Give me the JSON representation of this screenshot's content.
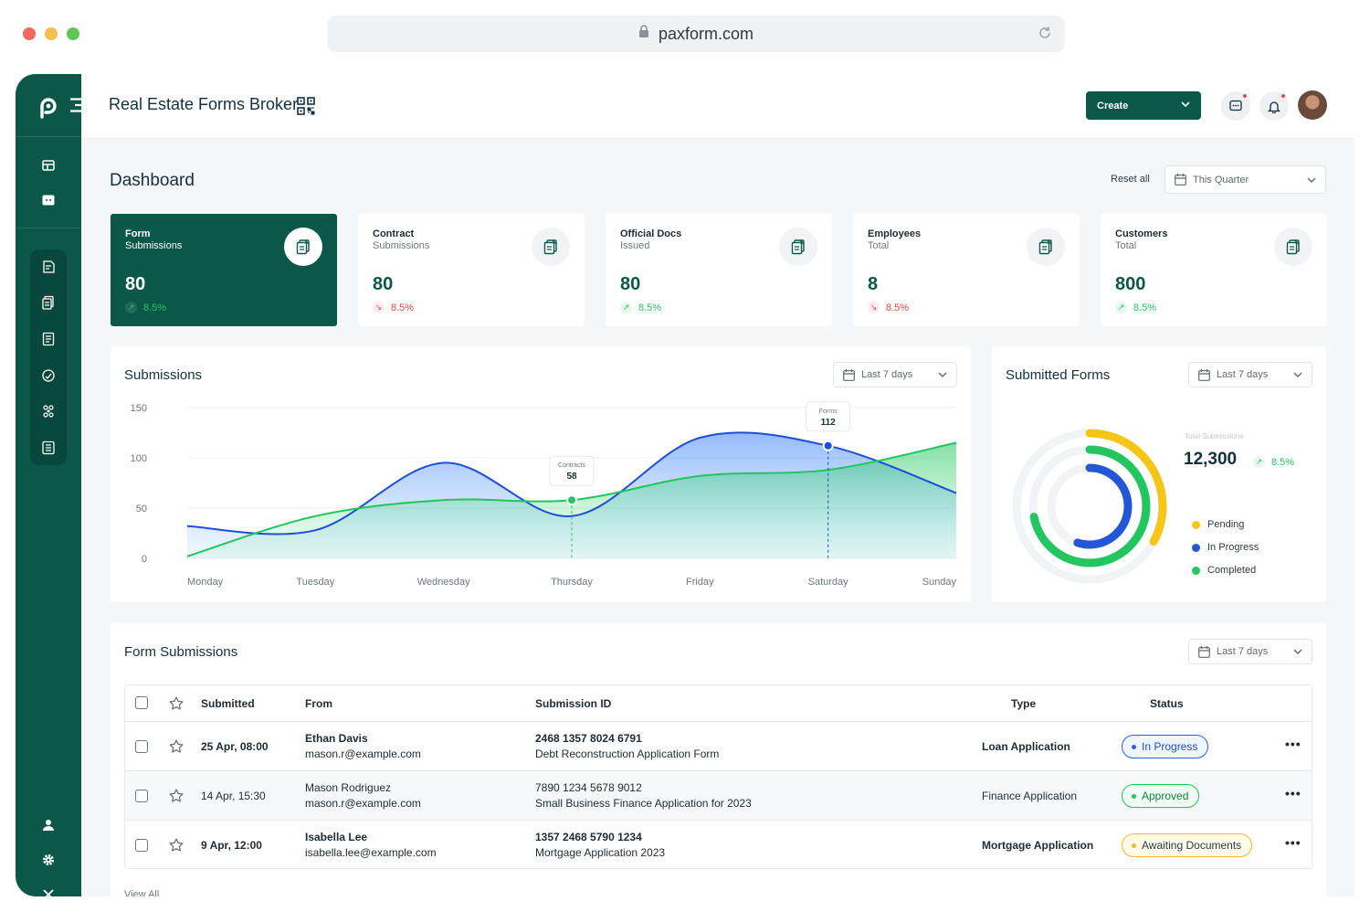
{
  "browser": {
    "url": "paxform.com"
  },
  "app": {
    "title": "Real Estate Forms Broker",
    "create_label": "Create"
  },
  "dashboard": {
    "title": "Dashboard",
    "reset_label": "Reset all",
    "period": "This Quarter"
  },
  "stats": [
    {
      "title": "Form",
      "subtitle": "Submissions",
      "value": "80",
      "change": "8.5%",
      "direction": "up"
    },
    {
      "title": "Contract",
      "subtitle": "Submissions",
      "value": "80",
      "change": "8.5%",
      "direction": "down"
    },
    {
      "title": "Official Docs",
      "subtitle": "Issued",
      "value": "80",
      "change": "8.5%",
      "direction": "up"
    },
    {
      "title": "Employees",
      "subtitle": "Total",
      "value": "8",
      "change": "8.5%",
      "direction": "down"
    },
    {
      "title": "Customers",
      "subtitle": "Total",
      "value": "800",
      "change": "8.5%",
      "direction": "up"
    }
  ],
  "submissions_panel": {
    "title": "Submissions",
    "range": "Last 7 days"
  },
  "chart_data": {
    "type": "area",
    "x": [
      "Monday",
      "Tuesday",
      "Wednesday",
      "Thursday",
      "Friday",
      "Saturday",
      "Sunday"
    ],
    "yticks": [
      0,
      50,
      100,
      150
    ],
    "ylim": [
      0,
      150
    ],
    "series": [
      {
        "name": "Forms",
        "color": "#1d4ed8",
        "values": [
          32,
          28,
          95,
          42,
          120,
          112,
          65
        ]
      },
      {
        "name": "Contracts",
        "color": "#22c55e",
        "values": [
          2,
          42,
          58,
          58,
          82,
          88,
          115
        ]
      }
    ],
    "annotations": [
      {
        "series": "Contracts",
        "label": "Contracts",
        "value": "58",
        "x": "Thursday"
      },
      {
        "series": "Forms",
        "label": "Forms",
        "value": "112",
        "x": "Saturday"
      }
    ]
  },
  "submitted_forms": {
    "title": "Submitted Forms",
    "range": "Last 7 days",
    "total_label": "Total Submissions",
    "total": "12,300",
    "change": "8.5%",
    "legend": [
      {
        "label": "Pending",
        "color": "#f5c518",
        "fraction": 0.33
      },
      {
        "label": "In Progress",
        "color": "#2457d6",
        "fraction": 0.55
      },
      {
        "label": "Completed",
        "color": "#22c55e",
        "fraction": 0.72
      }
    ]
  },
  "form_submissions": {
    "title": "Form Submissions",
    "range": "Last 7 days",
    "columns": [
      "Submitted",
      "From",
      "Submission ID",
      "Type",
      "Status"
    ],
    "rows": [
      {
        "submitted": "25 Apr, 08:00",
        "name": "Ethan Davis",
        "email": "mason.r@example.com",
        "id": "2468 1357 8024 6791",
        "form": "Debt Reconstruction Application Form",
        "type": "Loan Application",
        "status": "In Progress"
      },
      {
        "submitted": "14 Apr, 15:30",
        "name": "Mason Rodriguez",
        "email": "mason.r@example.com",
        "id": "7890 1234 5678 9012",
        "form": "Small Business Finance Application for 2023",
        "type": "Finance Application",
        "status": "Approved"
      },
      {
        "submitted": "9 Apr, 12:00",
        "name": "Isabella Lee",
        "email": "isabella.lee@example.com",
        "id": "1357 2468 5790 1234",
        "form": "Mortgage Application 2023",
        "type": "Mortgage Application",
        "status": "Awaiting Documents"
      }
    ],
    "view_all": "View All"
  }
}
